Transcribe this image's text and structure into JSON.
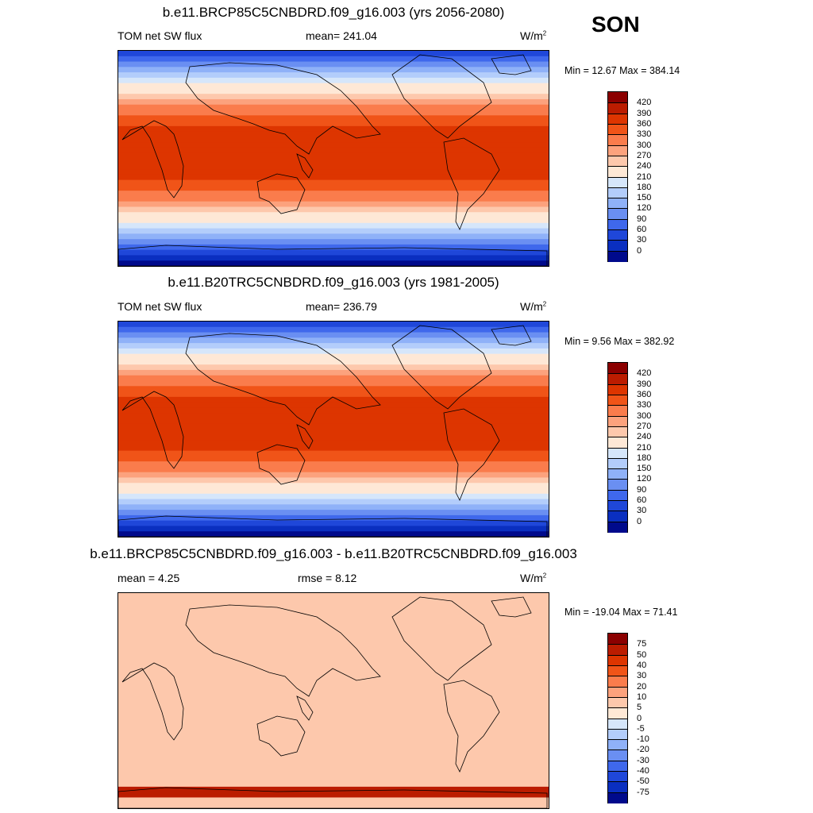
{
  "season": "SON",
  "panels": [
    {
      "title": "b.e11.BRCP85C5CNBDRD.f09_g16.003 (yrs 2056-2080)",
      "left_label": "TOM net SW flux",
      "mid_label": "mean= 241.04",
      "units": "W/m",
      "units_sup": "2",
      "minmax": "Min =  12.67 Max = 384.14",
      "field": "abs",
      "colorbar": {
        "colors": [
          "#8b0000",
          "#bb1c00",
          "#dd3500",
          "#f05418",
          "#fa7c4c",
          "#fca27d",
          "#fdc8ac",
          "#fee8d6",
          "#d6e6fa",
          "#b3cdfb",
          "#8fb1f8",
          "#6a8ff2",
          "#3f68ec",
          "#1f47d9",
          "#0a2fc0",
          "#000a8c"
        ],
        "labels": [
          "420",
          "390",
          "360",
          "330",
          "300",
          "270",
          "240",
          "210",
          "180",
          "150",
          "120",
          "90",
          "60",
          "30",
          "0"
        ]
      }
    },
    {
      "title": "b.e11.B20TRC5CNBDRD.f09_g16.003 (yrs 1981-2005)",
      "left_label": "TOM net SW flux",
      "mid_label": "mean= 236.79",
      "units": "W/m",
      "units_sup": "2",
      "minmax": "Min =   9.56 Max = 382.92",
      "field": "abs",
      "colorbar": {
        "colors": [
          "#8b0000",
          "#bb1c00",
          "#dd3500",
          "#f05418",
          "#fa7c4c",
          "#fca27d",
          "#fdc8ac",
          "#fee8d6",
          "#d6e6fa",
          "#b3cdfb",
          "#8fb1f8",
          "#6a8ff2",
          "#3f68ec",
          "#1f47d9",
          "#0a2fc0",
          "#000a8c"
        ],
        "labels": [
          "420",
          "390",
          "360",
          "330",
          "300",
          "270",
          "240",
          "210",
          "180",
          "150",
          "120",
          "90",
          "60",
          "30",
          "0"
        ]
      }
    },
    {
      "title": "b.e11.BRCP85C5CNBDRD.f09_g16.003 - b.e11.B20TRC5CNBDRD.f09_g16.003",
      "left_label": "mean =   4.25",
      "mid_label": "rmse =   8.12",
      "units": "W/m",
      "units_sup": "2",
      "minmax": "Min = -19.04 Max =  71.41",
      "field": "diff",
      "colorbar": {
        "colors": [
          "#8b0000",
          "#bb1c00",
          "#dd3500",
          "#f05418",
          "#fa7c4c",
          "#fca27d",
          "#fdc8ac",
          "#fee8d6",
          "#d6e6fa",
          "#b3cdfb",
          "#8fb1f8",
          "#6a8ff2",
          "#3f68ec",
          "#1f47d9",
          "#0a2fc0",
          "#000a8c"
        ],
        "labels": [
          "75",
          "50",
          "40",
          "30",
          "20",
          "10",
          "5",
          "0",
          "-5",
          "-10",
          "-20",
          "-30",
          "-40",
          "-50",
          "-75"
        ]
      }
    }
  ]
}
